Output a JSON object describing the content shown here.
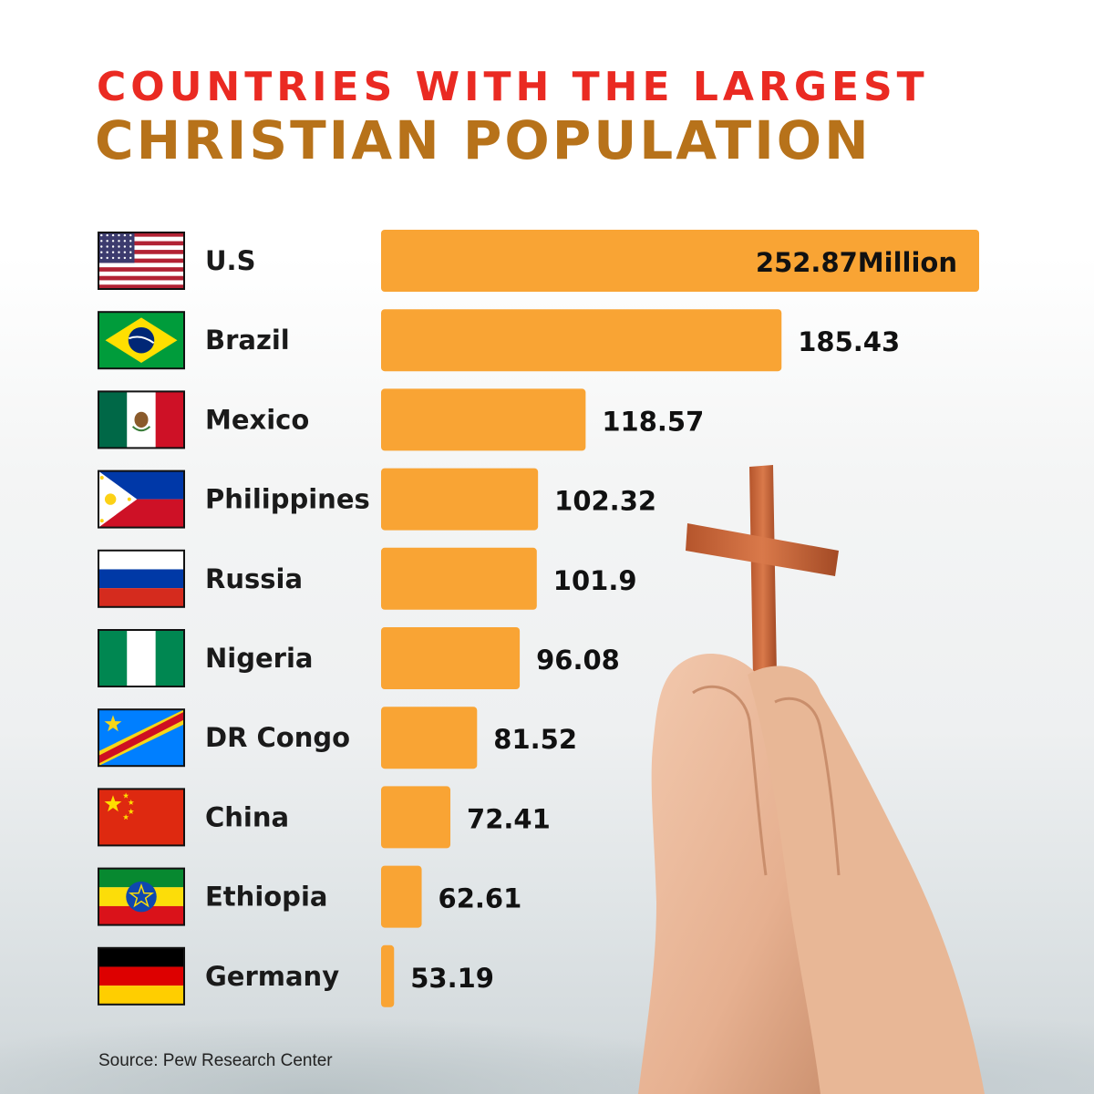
{
  "header": {
    "title_line1": "COUNTRIES WITH THE LARGEST",
    "title_line2": "CHRISTIAN POPULATION"
  },
  "source": "Source: Pew Research Center",
  "colors": {
    "bar": "#f9a434",
    "title_red": "#ea2a22",
    "title_gold": "#b7721a"
  },
  "chart_data": {
    "type": "bar",
    "orientation": "horizontal",
    "title": "COUNTRIES WITH THE LARGEST CHRISTIAN POPULATION",
    "unit": "Million",
    "categories": [
      "U.S",
      "Brazil",
      "Mexico",
      "Philippines",
      "Russia",
      "Nigeria",
      "DR Congo",
      "China",
      "Ethiopia",
      "Germany"
    ],
    "flag_icons": [
      "usa-flag-icon",
      "brazil-flag-icon",
      "mexico-flag-icon",
      "philippines-flag-icon",
      "russia-flag-icon",
      "nigeria-flag-icon",
      "dr-congo-flag-icon",
      "china-flag-icon",
      "ethiopia-flag-icon",
      "germany-flag-icon"
    ],
    "values": [
      252.87,
      185.43,
      118.57,
      102.32,
      101.9,
      96.08,
      81.52,
      72.41,
      62.61,
      53.19
    ],
    "value_labels": [
      "252.87Million",
      "185.43",
      "118.57",
      "102.32",
      "101.9",
      "96.08",
      "81.52",
      "72.41",
      "62.61",
      "53.19"
    ],
    "xlim": [
      50,
      252.87
    ],
    "grid": false,
    "legend": "none"
  }
}
